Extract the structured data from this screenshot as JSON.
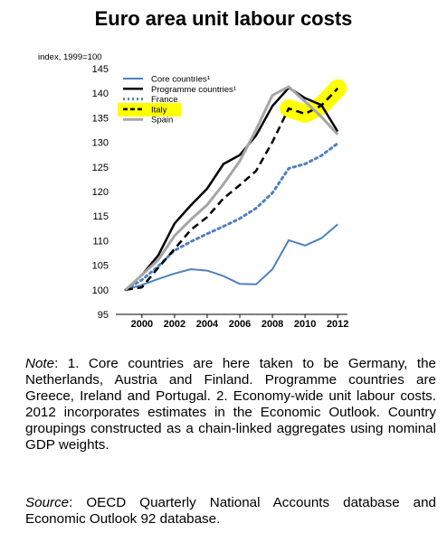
{
  "title": "Euro area unit labour costs",
  "chart_data": {
    "type": "line",
    "ylabel": "index, 1999=100",
    "ylim": [
      95,
      145
    ],
    "yticks": [
      95,
      100,
      105,
      110,
      115,
      120,
      125,
      130,
      135,
      140,
      145
    ],
    "xlim": [
      1998.4,
      2012.6
    ],
    "xticks": [
      2000,
      2002,
      2004,
      2006,
      2008,
      2010,
      2012
    ],
    "xtick_labels": [
      "2000",
      "2002",
      "2004",
      "2006",
      "2008",
      "2010",
      "2012"
    ],
    "legend_position": "top-left",
    "grid": false,
    "x": [
      1999,
      2000,
      2001,
      2002,
      2003,
      2004,
      2005,
      2006,
      2007,
      2008,
      2009,
      2010,
      2011,
      2012
    ],
    "series": [
      {
        "name": "Core countries¹",
        "color": "#4f81bd",
        "style": "solid",
        "width": 2,
        "values": [
          100,
          101,
          102.2,
          103.3,
          104.2,
          103.9,
          102.8,
          101.2,
          101.1,
          104.2,
          110.1,
          109,
          110.5,
          113.3
        ]
      },
      {
        "name": "Programme countries¹",
        "color": "#000000",
        "style": "solid",
        "width": 2.5,
        "values": [
          100,
          103,
          107,
          113.5,
          117.2,
          120.6,
          125.6,
          127.4,
          131.4,
          137.4,
          141.1,
          139,
          137.6,
          132.2
        ]
      },
      {
        "name": "France",
        "color": "#4f81bd",
        "style": "dotted",
        "width": 3,
        "values": [
          100,
          102,
          104.8,
          108,
          109.8,
          111.4,
          112.9,
          114.5,
          116.6,
          119.7,
          124.7,
          125.6,
          127.3,
          129.8
        ]
      },
      {
        "name": "Italy",
        "color": "#000000",
        "style": "dashed",
        "width": 2.5,
        "values": [
          100,
          100.5,
          104.5,
          108.3,
          112.2,
          114.8,
          118.6,
          121.3,
          124.2,
          130.1,
          136.9,
          135.8,
          137.5,
          141
        ]
      },
      {
        "name": "Spain",
        "color": "#a6a6a6",
        "style": "solid",
        "width": 3,
        "values": [
          100,
          103,
          106.1,
          111,
          114.3,
          117.3,
          121.5,
          126.2,
          132.6,
          139.6,
          141.3,
          138.3,
          135.2,
          131.6
        ]
      }
    ],
    "highlights": [
      {
        "label": "Italy",
        "kind": "legend-entry",
        "color": "#ffff00"
      },
      {
        "label": "Italy",
        "kind": "line-segment",
        "x_range": [
          2008.6,
          2012.3
        ],
        "color": "#ffff00"
      }
    ]
  },
  "note": {
    "lead": "Note",
    "text": ": 1. Core countries are here taken to be Germany, the Netherlands, Austria and Finland. Programme countries are Greece, Ireland and Portugal. 2. Economy-wide unit labour costs. 2012 incorporates estimates in the Economic Outlook. Country groupings constructed as a chain-linked aggregates using nominal GDP weights."
  },
  "source": {
    "lead": "Source",
    "text": ": OECD Quarterly National Accounts database and Economic Outlook 92 database."
  }
}
